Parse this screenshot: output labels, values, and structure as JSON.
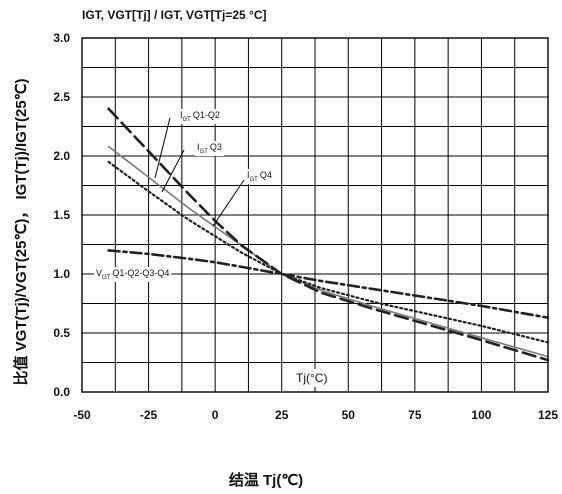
{
  "chart_data": {
    "type": "line",
    "title": "IGT, VGT[Tj] / IGT, VGT[Tj=25 °C]",
    "xlabel": "结温 Tj(℃)",
    "ylabel": "比值 VGT(Tj)/VGT(25℃)， IGT(Tj)/IGT(25℃)",
    "inner_xlabel": "Tj(°C)",
    "xlim": [
      -50,
      125
    ],
    "ylim": [
      0,
      3.0
    ],
    "xticks": [
      "-50",
      "-25",
      "0",
      "25",
      "50",
      "75",
      "100",
      "125"
    ],
    "yticks": [
      "0.0",
      "0.5",
      "1.0",
      "1.5",
      "2.0",
      "2.5",
      "3.0"
    ],
    "grid": true,
    "series": [
      {
        "name": "IGT Q1-Q2",
        "style": "solid",
        "color": "#7a7a7a",
        "x": [
          -40,
          -25,
          -10,
          0,
          10,
          25,
          40,
          60,
          80,
          100,
          125
        ],
        "y": [
          2.08,
          1.82,
          1.56,
          1.4,
          1.24,
          1.0,
          0.86,
          0.72,
          0.59,
          0.46,
          0.3
        ]
      },
      {
        "name": "IGT Q3",
        "style": "dotted",
        "color": "#222222",
        "x": [
          -40,
          -25,
          -10,
          0,
          10,
          25,
          40,
          60,
          80,
          100,
          125
        ],
        "y": [
          1.95,
          1.7,
          1.46,
          1.32,
          1.18,
          1.0,
          0.88,
          0.76,
          0.66,
          0.56,
          0.42
        ]
      },
      {
        "name": "IGT Q4",
        "style": "dashed",
        "color": "#222222",
        "x": [
          -40,
          -25,
          -10,
          0,
          10,
          25,
          40,
          60,
          80,
          100,
          125
        ],
        "y": [
          2.4,
          2.04,
          1.68,
          1.45,
          1.24,
          1.0,
          0.84,
          0.7,
          0.57,
          0.44,
          0.27
        ]
      },
      {
        "name": "VGT Q1-Q2-Q3-Q4",
        "style": "dashdot",
        "color": "#222222",
        "x": [
          -40,
          -25,
          -10,
          0,
          10,
          25,
          40,
          60,
          80,
          100,
          125
        ],
        "y": [
          1.2,
          1.17,
          1.13,
          1.1,
          1.06,
          1.0,
          0.94,
          0.87,
          0.8,
          0.73,
          0.63
        ]
      }
    ],
    "annotations": [
      {
        "main": "I",
        "sub": "GT",
        "rest": "Q1-Q2"
      },
      {
        "main": "I",
        "sub": "GT",
        "rest": "Q3"
      },
      {
        "main": "I",
        "sub": "GT",
        "rest": "Q4"
      },
      {
        "main": "V",
        "sub": "GT",
        "rest": "Q1-Q2-Q3-Q4"
      }
    ]
  }
}
